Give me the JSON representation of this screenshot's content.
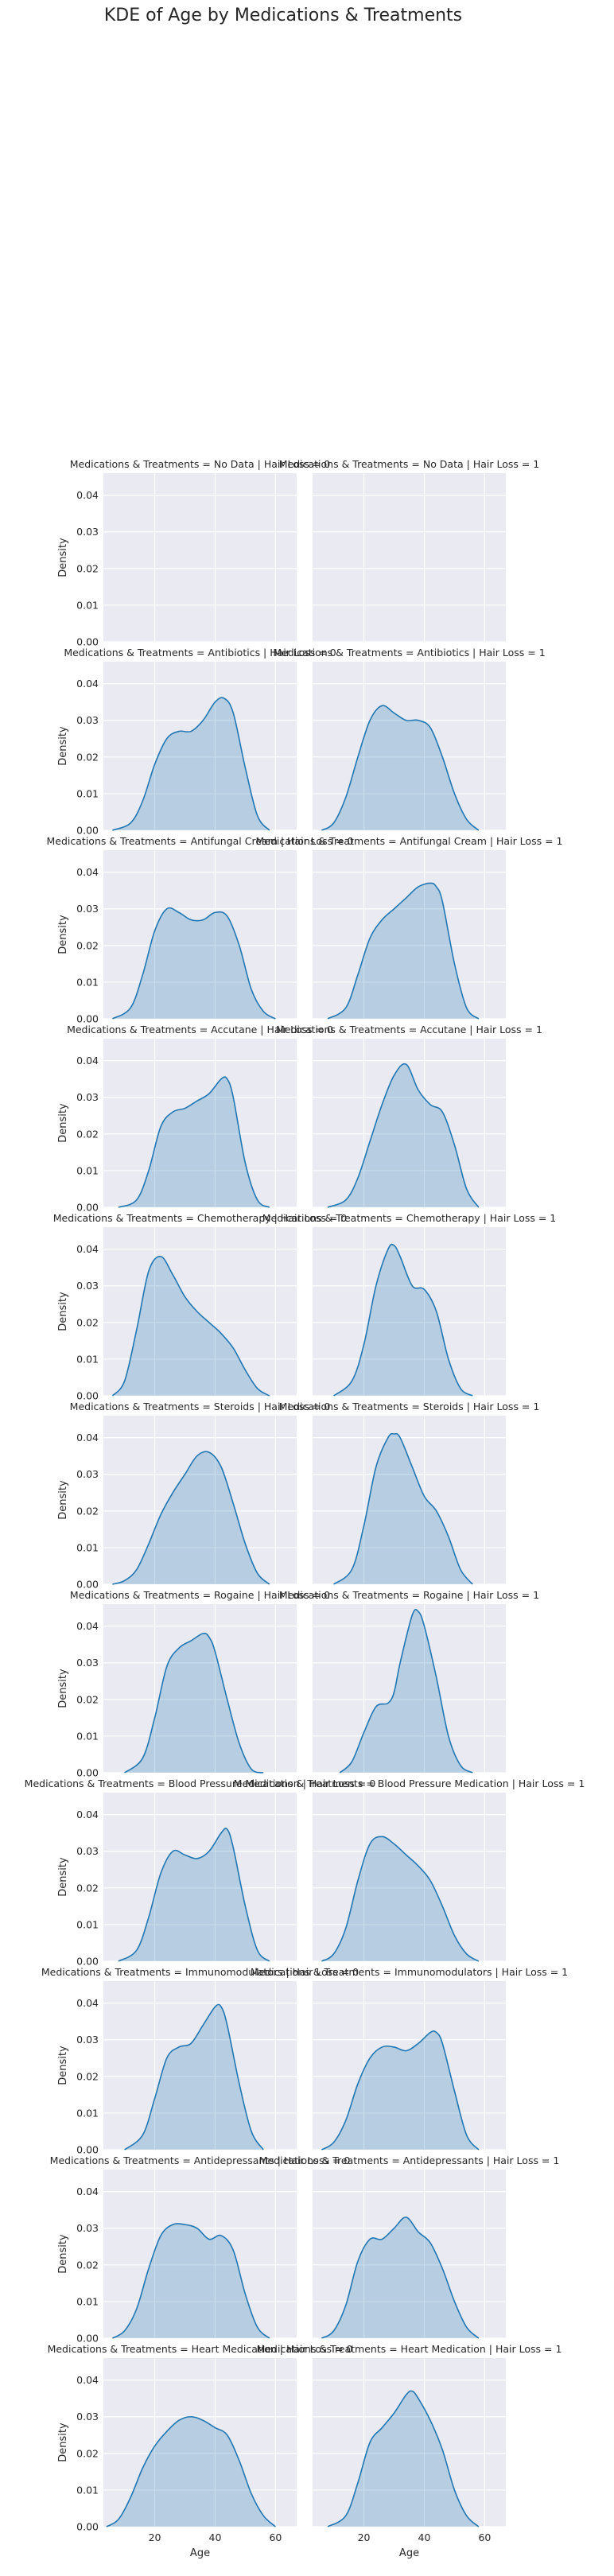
{
  "figure": {
    "title": "KDE of Age by Medications & Treatments"
  },
  "chart_data": {
    "type": "area",
    "title": "KDE of Age by Medications & Treatments",
    "xlabel": "Age",
    "ylabel": "Density",
    "xlim": [
      3,
      67
    ],
    "ylim": [
      0,
      0.046
    ],
    "xticks": [
      20,
      40,
      60
    ],
    "yticks": [
      0.0,
      0.01,
      0.02,
      0.03,
      0.04
    ],
    "ytick_labels": [
      "0.00",
      "0.01",
      "0.02",
      "0.03",
      "0.04"
    ],
    "grid": true,
    "series_color": "#1f77b4",
    "panel_background": "#eaeaf2",
    "columns": [
      "Hair Loss = 0",
      "Hair Loss = 1"
    ],
    "panels": [
      {
        "title": "Medications & Treatments = No Data | Hair Loss = 0",
        "x": [],
        "y": []
      },
      {
        "title": "Medications & Treatments = No Data | Hair Loss = 1",
        "x": [],
        "y": []
      },
      {
        "title": "Medications & Treatments = Antibiotics | Hair Loss = 0",
        "x": [
          6,
          12,
          16,
          20,
          24,
          28,
          32,
          36,
          40,
          43,
          46,
          50,
          54,
          58
        ],
        "y": [
          0,
          0.002,
          0.008,
          0.018,
          0.025,
          0.027,
          0.027,
          0.03,
          0.035,
          0.036,
          0.032,
          0.017,
          0.004,
          0
        ]
      },
      {
        "title": "Medications & Treatments = Antibiotics | Hair Loss = 1",
        "x": [
          6,
          10,
          14,
          18,
          22,
          26,
          30,
          34,
          38,
          42,
          46,
          50,
          54,
          58
        ],
        "y": [
          0,
          0.002,
          0.009,
          0.02,
          0.03,
          0.034,
          0.032,
          0.03,
          0.03,
          0.028,
          0.02,
          0.01,
          0.003,
          0
        ]
      },
      {
        "title": "Medications & Treatments = Antifungal Cream | Hair Loss = 0",
        "x": [
          6,
          12,
          16,
          20,
          24,
          28,
          32,
          36,
          40,
          44,
          48,
          52,
          56,
          60
        ],
        "y": [
          0,
          0.003,
          0.012,
          0.024,
          0.03,
          0.029,
          0.027,
          0.027,
          0.029,
          0.028,
          0.02,
          0.008,
          0.002,
          0
        ]
      },
      {
        "title": "Medications & Treatments = Antifungal Cream | Hair Loss = 1",
        "x": [
          8,
          14,
          18,
          22,
          26,
          30,
          34,
          38,
          42,
          44,
          46,
          50,
          54,
          58
        ],
        "y": [
          0,
          0.003,
          0.012,
          0.022,
          0.027,
          0.03,
          0.033,
          0.036,
          0.037,
          0.036,
          0.032,
          0.015,
          0.003,
          0
        ]
      },
      {
        "title": "Medications & Treatments = Accutane | Hair Loss = 0",
        "x": [
          8,
          14,
          18,
          22,
          26,
          30,
          34,
          38,
          42,
          44,
          46,
          50,
          54,
          58
        ],
        "y": [
          0,
          0.002,
          0.01,
          0.022,
          0.026,
          0.027,
          0.029,
          0.031,
          0.035,
          0.035,
          0.03,
          0.012,
          0.002,
          0
        ]
      },
      {
        "title": "Medications & Treatments = Accutane | Hair Loss = 1",
        "x": [
          8,
          14,
          18,
          22,
          26,
          30,
          34,
          38,
          42,
          46,
          50,
          54,
          58
        ],
        "y": [
          0,
          0.002,
          0.008,
          0.018,
          0.028,
          0.036,
          0.039,
          0.032,
          0.028,
          0.026,
          0.017,
          0.005,
          0
        ]
      },
      {
        "title": "Medications & Treatments = Chemotherapy | Hair Loss = 0",
        "x": [
          6,
          10,
          14,
          18,
          22,
          26,
          30,
          34,
          38,
          42,
          46,
          50,
          54,
          58
        ],
        "y": [
          0,
          0.004,
          0.018,
          0.034,
          0.038,
          0.033,
          0.027,
          0.023,
          0.02,
          0.017,
          0.013,
          0.007,
          0.002,
          0
        ]
      },
      {
        "title": "Medications & Treatments = Chemotherapy | Hair Loss = 1",
        "x": [
          10,
          16,
          20,
          24,
          28,
          30,
          32,
          36,
          40,
          44,
          48,
          52,
          56
        ],
        "y": [
          0,
          0.004,
          0.014,
          0.03,
          0.04,
          0.041,
          0.038,
          0.03,
          0.029,
          0.023,
          0.01,
          0.002,
          0
        ]
      },
      {
        "title": "Medications & Treatments = Steroids | Hair Loss = 0",
        "x": [
          6,
          10,
          14,
          18,
          22,
          26,
          30,
          34,
          38,
          42,
          46,
          50,
          54,
          58
        ],
        "y": [
          0,
          0.001,
          0.004,
          0.011,
          0.019,
          0.025,
          0.03,
          0.035,
          0.036,
          0.032,
          0.022,
          0.011,
          0.003,
          0
        ]
      },
      {
        "title": "Medications & Treatments = Steroids | Hair Loss = 1",
        "x": [
          10,
          16,
          20,
          24,
          28,
          30,
          32,
          36,
          40,
          44,
          48,
          52,
          56
        ],
        "y": [
          0,
          0.004,
          0.016,
          0.032,
          0.04,
          0.041,
          0.04,
          0.032,
          0.024,
          0.02,
          0.013,
          0.004,
          0
        ]
      },
      {
        "title": "Medications & Treatments = Rogaine | Hair Loss = 0",
        "x": [
          10,
          16,
          20,
          24,
          28,
          32,
          36,
          38,
          40,
          44,
          48,
          52,
          56
        ],
        "y": [
          0,
          0.004,
          0.015,
          0.029,
          0.034,
          0.036,
          0.038,
          0.037,
          0.033,
          0.02,
          0.008,
          0.001,
          0
        ]
      },
      {
        "title": "Medications & Treatments = Rogaine | Hair Loss = 1",
        "x": [
          12,
          16,
          20,
          24,
          28,
          30,
          32,
          36,
          38,
          40,
          44,
          48,
          52,
          56
        ],
        "y": [
          0,
          0.003,
          0.011,
          0.018,
          0.019,
          0.022,
          0.03,
          0.043,
          0.044,
          0.04,
          0.026,
          0.01,
          0.002,
          0
        ]
      },
      {
        "title": "Medications & Treatments = Blood Pressure Medication | Hair Loss = 0",
        "x": [
          8,
          14,
          18,
          22,
          26,
          30,
          34,
          38,
          42,
          44,
          46,
          50,
          54,
          58
        ],
        "y": [
          0,
          0.003,
          0.012,
          0.024,
          0.03,
          0.029,
          0.028,
          0.03,
          0.035,
          0.036,
          0.031,
          0.015,
          0.003,
          0
        ]
      },
      {
        "title": "Medications & Treatments = Blood Pressure Medication | Hair Loss = 1",
        "x": [
          6,
          10,
          14,
          18,
          22,
          26,
          30,
          34,
          38,
          42,
          46,
          50,
          54,
          58
        ],
        "y": [
          0,
          0.002,
          0.009,
          0.022,
          0.032,
          0.034,
          0.032,
          0.029,
          0.026,
          0.022,
          0.015,
          0.007,
          0.002,
          0
        ]
      },
      {
        "title": "Medications & Treatments = Immunomodulators | Hair Loss = 0",
        "x": [
          10,
          16,
          20,
          24,
          28,
          32,
          36,
          40,
          42,
          44,
          48,
          52,
          56
        ],
        "y": [
          0,
          0.004,
          0.014,
          0.025,
          0.028,
          0.029,
          0.034,
          0.039,
          0.039,
          0.034,
          0.018,
          0.005,
          0
        ]
      },
      {
        "title": "Medications & Treatments = Immunomodulators | Hair Loss = 1",
        "x": [
          6,
          10,
          14,
          18,
          22,
          26,
          30,
          34,
          38,
          42,
          44,
          46,
          50,
          54,
          58
        ],
        "y": [
          0,
          0.002,
          0.008,
          0.018,
          0.025,
          0.028,
          0.028,
          0.027,
          0.029,
          0.032,
          0.032,
          0.029,
          0.016,
          0.004,
          0
        ]
      },
      {
        "title": "Medications & Treatments = Antidepressants | Hair Loss = 0",
        "x": [
          6,
          10,
          14,
          18,
          22,
          26,
          30,
          34,
          38,
          42,
          46,
          50,
          54,
          58
        ],
        "y": [
          0,
          0.002,
          0.008,
          0.019,
          0.028,
          0.031,
          0.031,
          0.03,
          0.027,
          0.028,
          0.024,
          0.012,
          0.003,
          0
        ]
      },
      {
        "title": "Medications & Treatments = Antidepressants | Hair Loss = 1",
        "x": [
          6,
          10,
          14,
          18,
          22,
          26,
          30,
          34,
          38,
          42,
          46,
          50,
          54,
          58
        ],
        "y": [
          0,
          0.002,
          0.009,
          0.021,
          0.027,
          0.027,
          0.03,
          0.033,
          0.029,
          0.026,
          0.019,
          0.01,
          0.003,
          0
        ]
      },
      {
        "title": "Medications & Treatments = Heart Medication  | Hair Loss = 0",
        "x": [
          4,
          8,
          12,
          16,
          20,
          24,
          28,
          32,
          36,
          40,
          44,
          48,
          52,
          56,
          60
        ],
        "y": [
          0,
          0.002,
          0.008,
          0.016,
          0.022,
          0.026,
          0.029,
          0.03,
          0.029,
          0.027,
          0.025,
          0.018,
          0.009,
          0.003,
          0
        ]
      },
      {
        "title": "Medications & Treatments = Heart Medication  | Hair Loss = 1",
        "x": [
          8,
          14,
          18,
          22,
          26,
          30,
          34,
          36,
          38,
          42,
          46,
          50,
          54,
          58
        ],
        "y": [
          0,
          0.003,
          0.012,
          0.023,
          0.027,
          0.031,
          0.036,
          0.037,
          0.035,
          0.029,
          0.021,
          0.01,
          0.003,
          0
        ]
      }
    ]
  }
}
